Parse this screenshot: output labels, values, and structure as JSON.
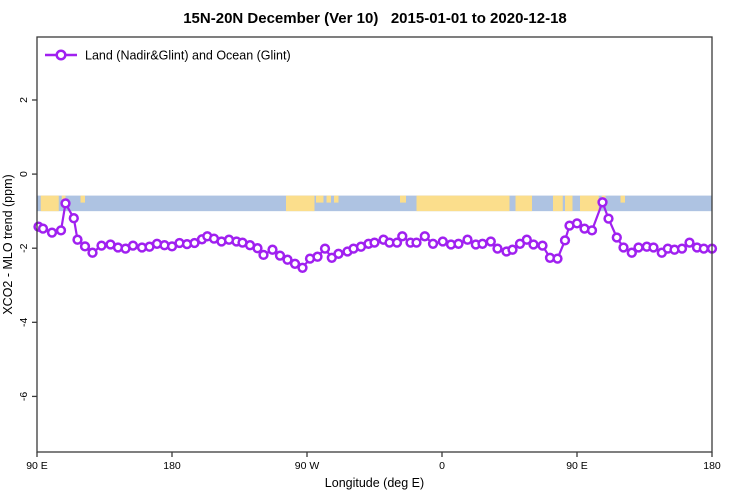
{
  "title": "15N-20N December (Ver 10)   2015-01-01 to 2020-12-18",
  "legend": {
    "label": "Land (Nadir&Glint) and Ocean (Glint)"
  },
  "colors": {
    "series": "#a020f0",
    "marker_fill": "#ffffff",
    "ocean": "#aec3e2",
    "land": "#fbde8c",
    "axis": "#3a3a3a",
    "text": "#000000"
  },
  "chart_data": {
    "type": "line",
    "title": "15N-20N December (Ver 10)   2015-01-01 to 2020-12-18",
    "xlabel": "Longitude (deg E)",
    "ylabel": "XCO2 - MLO trend (ppm)",
    "xlim": [
      90,
      540
    ],
    "ylim": [
      -7.5,
      3.7
    ],
    "grid": false,
    "legend_position": "top-left-inside",
    "x_ticks": [
      {
        "value": 90,
        "label": "90 E"
      },
      {
        "value": 180,
        "label": "180"
      },
      {
        "value": 270,
        "label": "90 W"
      },
      {
        "value": 360,
        "label": "0"
      },
      {
        "value": 450,
        "label": "90 E"
      },
      {
        "value": 540,
        "label": "180"
      }
    ],
    "y_ticks": [
      {
        "value": 2,
        "label": "2"
      },
      {
        "value": 0,
        "label": "0"
      },
      {
        "value": -2,
        "label": "-2"
      },
      {
        "value": -4,
        "label": "-4"
      },
      {
        "value": -6,
        "label": "-6"
      }
    ],
    "map_band": {
      "description": "world land/ocean strip for latitude band 15N-20N",
      "y_top": -0.58,
      "y_bottom": -1.0,
      "land_segments": [
        [
          92.5,
          104.5
        ],
        [
          256,
          275
        ],
        [
          343,
          405
        ],
        [
          409,
          420
        ],
        [
          434,
          440.5
        ],
        [
          442,
          447
        ],
        [
          452,
          464.5
        ]
      ],
      "land_dashes": [
        [
          106.5,
          109
        ],
        [
          119,
          122
        ],
        [
          276,
          281
        ],
        [
          283,
          286
        ],
        [
          288,
          291
        ],
        [
          332,
          336
        ],
        [
          466.5,
          469
        ],
        [
          479,
          482
        ]
      ]
    },
    "series": [
      {
        "name": "Land (Nadir&Glint) and Ocean (Glint)",
        "marker": "open-circle",
        "points": [
          [
            91,
            -1.42
          ],
          [
            94,
            -1.47
          ],
          [
            100,
            -1.58
          ],
          [
            106,
            -1.52
          ],
          [
            109,
            -0.79
          ],
          [
            114.5,
            -1.19
          ],
          [
            117,
            -1.77
          ],
          [
            122,
            -1.95
          ],
          [
            127,
            -2.12
          ],
          [
            133,
            -1.93
          ],
          [
            139,
            -1.9
          ],
          [
            144,
            -1.98
          ],
          [
            149,
            -2.01
          ],
          [
            154,
            -1.93
          ],
          [
            160,
            -1.98
          ],
          [
            165,
            -1.96
          ],
          [
            170,
            -1.88
          ],
          [
            175,
            -1.92
          ],
          [
            180,
            -1.95
          ],
          [
            185,
            -1.86
          ],
          [
            190,
            -1.89
          ],
          [
            195,
            -1.86
          ],
          [
            200,
            -1.76
          ],
          [
            203.5,
            -1.68
          ],
          [
            208,
            -1.74
          ],
          [
            213,
            -1.82
          ],
          [
            218,
            -1.77
          ],
          [
            223,
            -1.82
          ],
          [
            227,
            -1.85
          ],
          [
            232,
            -1.92
          ],
          [
            237,
            -2.0
          ],
          [
            241,
            -2.18
          ],
          [
            247,
            -2.04
          ],
          [
            252,
            -2.2
          ],
          [
            257,
            -2.31
          ],
          [
            262,
            -2.42
          ],
          [
            267,
            -2.53
          ],
          [
            272,
            -2.28
          ],
          [
            277,
            -2.23
          ],
          [
            282,
            -2.01
          ],
          [
            286.5,
            -2.26
          ],
          [
            291,
            -2.15
          ],
          [
            297,
            -2.09
          ],
          [
            301,
            -2.01
          ],
          [
            306,
            -1.96
          ],
          [
            311,
            -1.88
          ],
          [
            315,
            -1.85
          ],
          [
            321,
            -1.77
          ],
          [
            325,
            -1.85
          ],
          [
            330,
            -1.85
          ],
          [
            333.5,
            -1.68
          ],
          [
            339,
            -1.85
          ],
          [
            343,
            -1.85
          ],
          [
            348.5,
            -1.68
          ],
          [
            354,
            -1.88
          ],
          [
            360.5,
            -1.82
          ],
          [
            366,
            -1.9
          ],
          [
            371,
            -1.88
          ],
          [
            377,
            -1.77
          ],
          [
            382.5,
            -1.9
          ],
          [
            387,
            -1.88
          ],
          [
            392.5,
            -1.82
          ],
          [
            397,
            -2.01
          ],
          [
            403,
            -2.09
          ],
          [
            407,
            -2.04
          ],
          [
            412,
            -1.88
          ],
          [
            416.5,
            -1.77
          ],
          [
            421,
            -1.9
          ],
          [
            427,
            -1.93
          ],
          [
            432,
            -2.26
          ],
          [
            437,
            -2.28
          ],
          [
            442,
            -1.79
          ],
          [
            445,
            -1.39
          ],
          [
            450,
            -1.33
          ],
          [
            455,
            -1.47
          ],
          [
            460,
            -1.52
          ],
          [
            467,
            -0.76
          ],
          [
            471,
            -1.2
          ],
          [
            476.5,
            -1.71
          ],
          [
            481,
            -1.98
          ],
          [
            486.5,
            -2.12
          ],
          [
            491,
            -1.98
          ],
          [
            496.5,
            -1.96
          ],
          [
            501,
            -1.98
          ],
          [
            506.5,
            -2.12
          ],
          [
            510.5,
            -2.01
          ],
          [
            515,
            -2.04
          ],
          [
            520,
            -2.01
          ],
          [
            525,
            -1.85
          ],
          [
            530,
            -1.98
          ],
          [
            534.5,
            -2.01
          ],
          [
            540,
            -2.01
          ]
        ]
      }
    ]
  }
}
